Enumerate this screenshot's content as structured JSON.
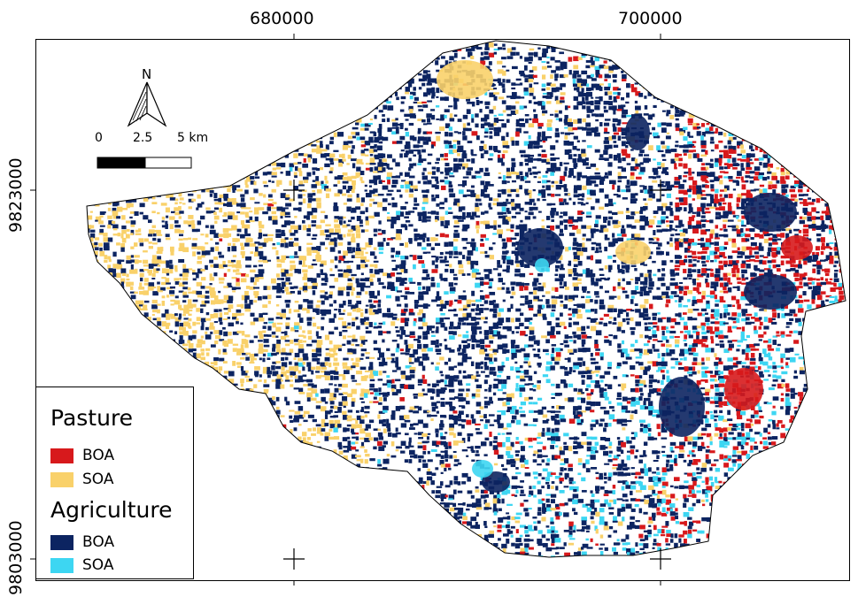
{
  "axes": {
    "x_ticks": [
      "680000",
      "700000"
    ],
    "y_ticks": [
      "9823000",
      "9803000"
    ]
  },
  "north_arrow": {
    "label": "N"
  },
  "scale_bar": {
    "labels": [
      "0",
      "2.5",
      "5 km"
    ]
  },
  "legend": {
    "groups": [
      {
        "title": "Pasture",
        "items": [
          {
            "label": "BOA",
            "color": "#d7191c"
          },
          {
            "label": "SOA",
            "color": "#f9d16a"
          }
        ]
      },
      {
        "title": "Agriculture",
        "items": [
          {
            "label": "BOA",
            "color": "#0c2461"
          },
          {
            "label": "SOA",
            "color": "#3dd6f2"
          }
        ]
      }
    ]
  }
}
